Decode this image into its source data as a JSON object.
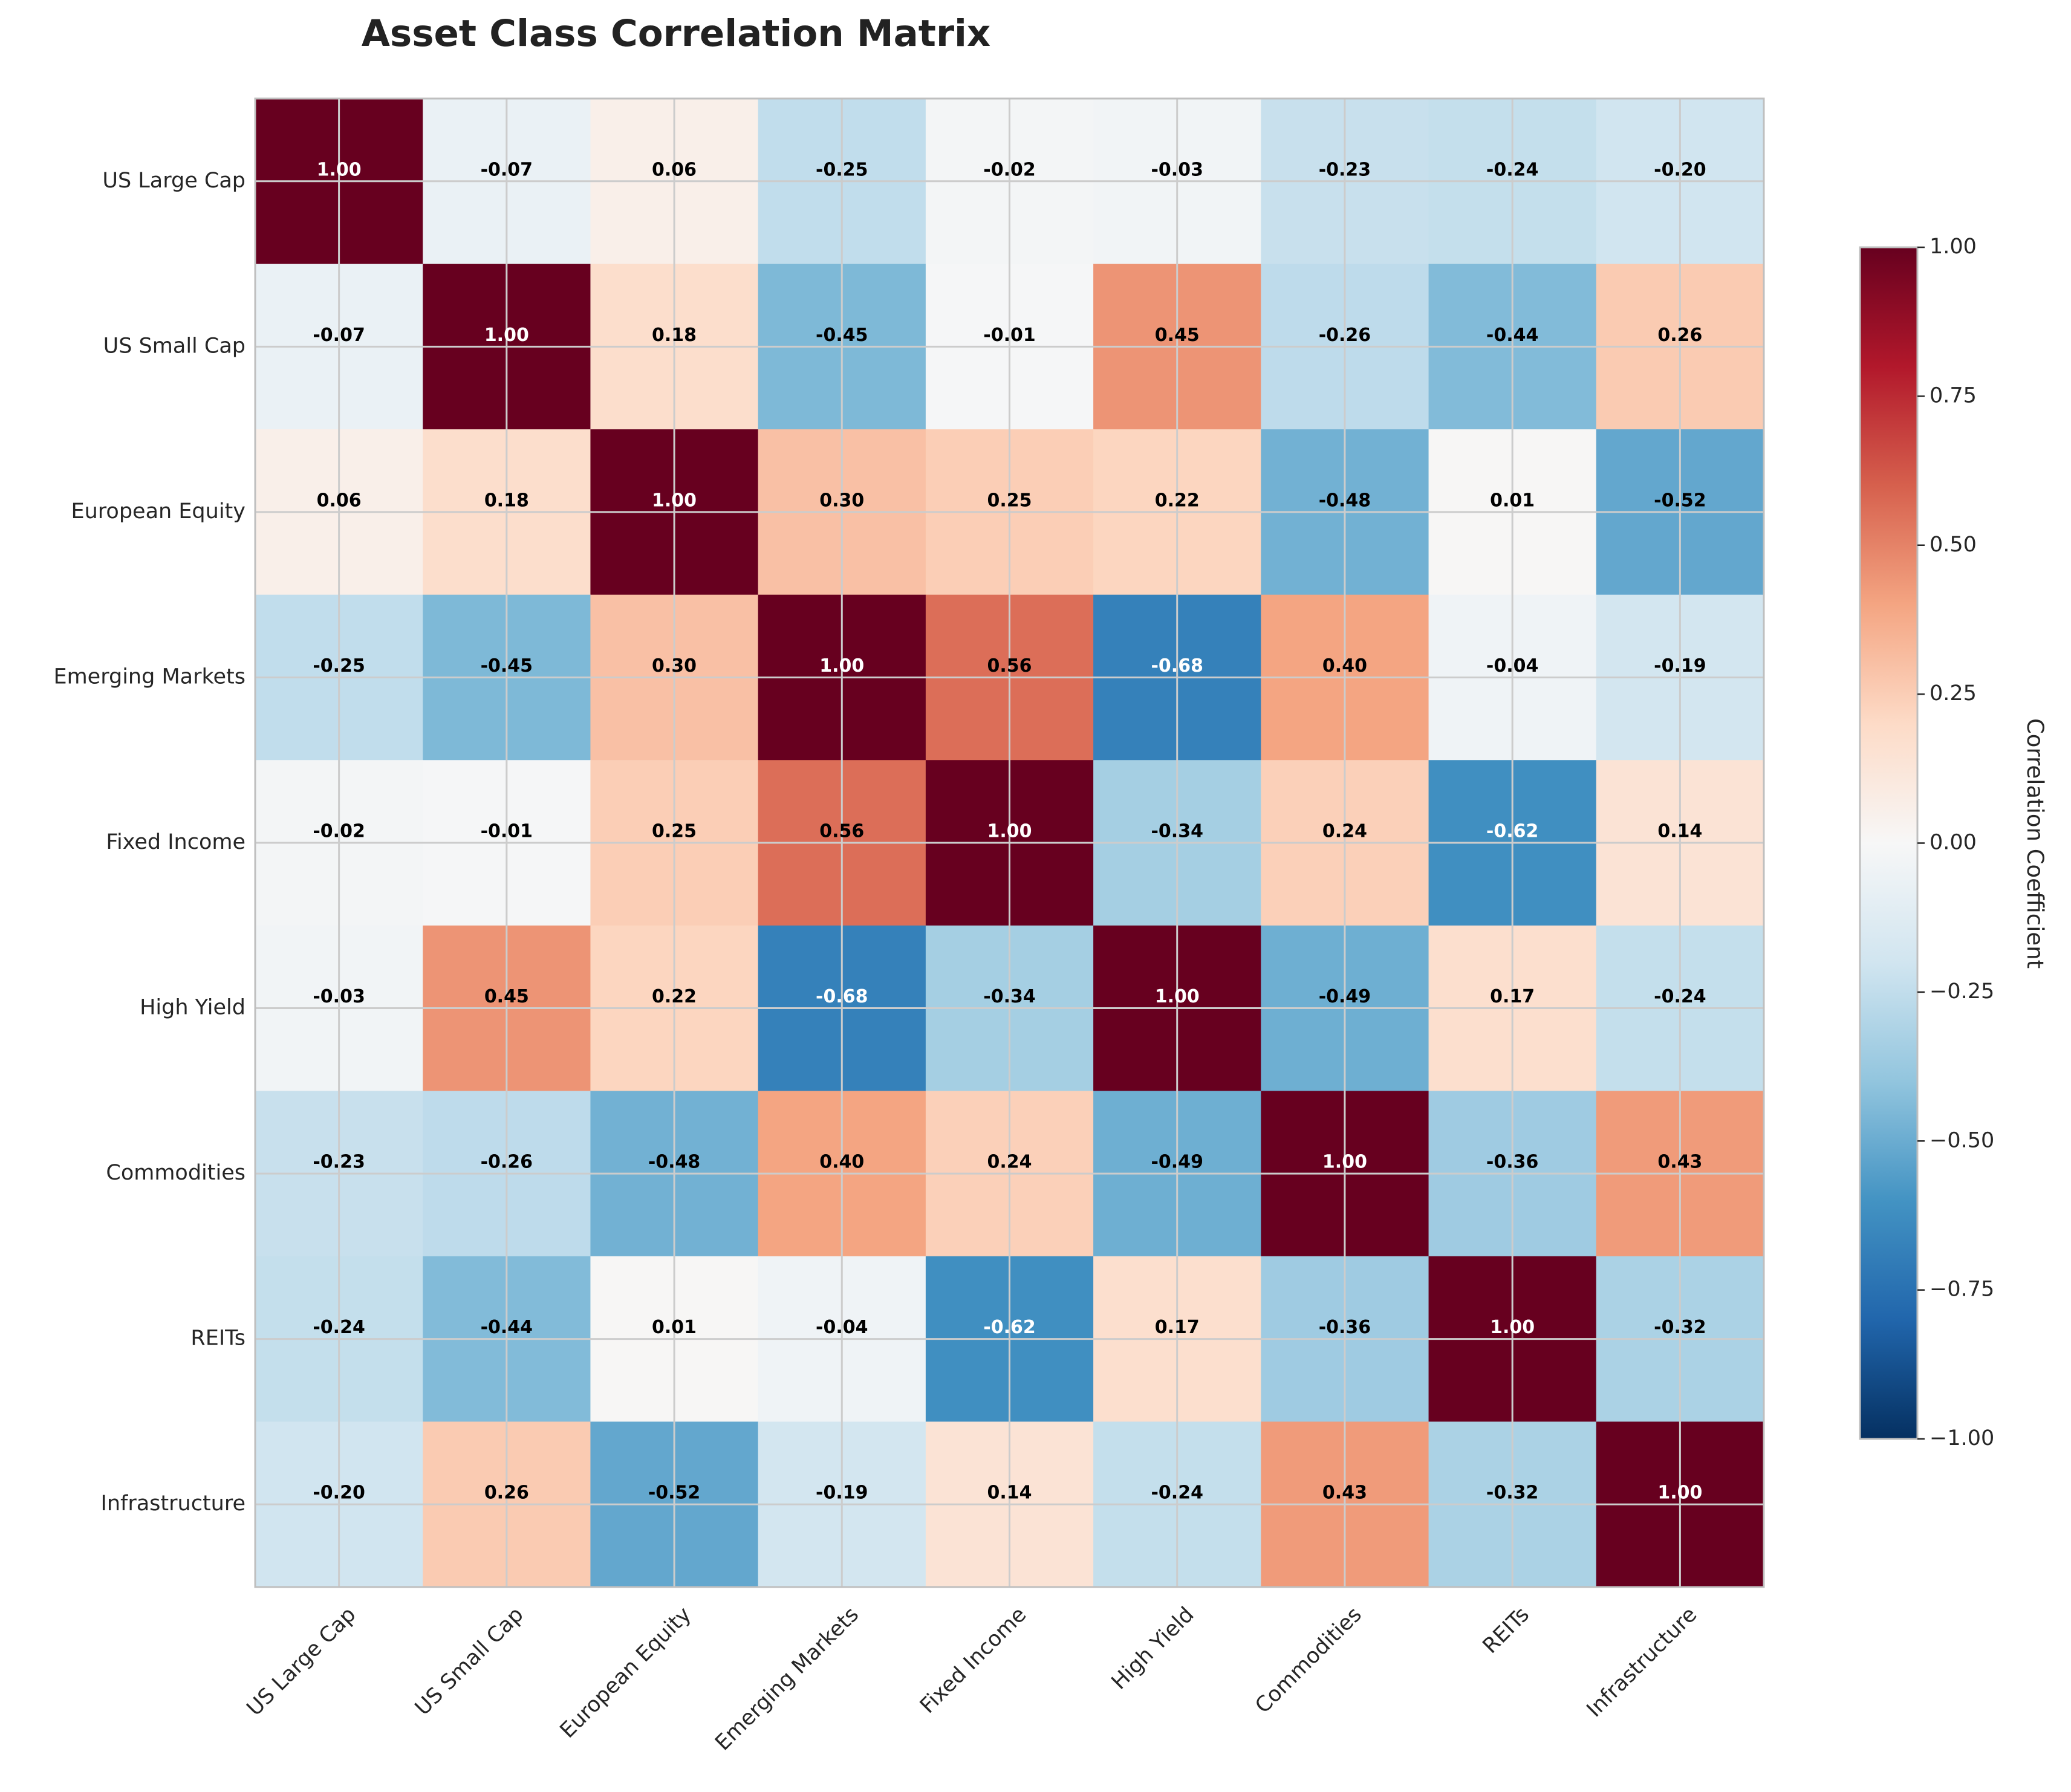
{
  "chart_data": {
    "type": "heatmap",
    "title": "Asset Class Correlation Matrix",
    "categories": [
      "US Large Cap",
      "US Small Cap",
      "European Equity",
      "Emerging Markets",
      "Fixed Income",
      "High Yield",
      "Commodities",
      "REITs",
      "Infrastructure"
    ],
    "matrix": [
      [
        1.0,
        -0.07,
        0.06,
        -0.25,
        -0.02,
        -0.03,
        -0.23,
        -0.24,
        -0.2
      ],
      [
        -0.07,
        1.0,
        0.18,
        -0.45,
        -0.01,
        0.45,
        -0.26,
        -0.44,
        0.26
      ],
      [
        0.06,
        0.18,
        1.0,
        0.3,
        0.25,
        0.22,
        -0.48,
        0.01,
        -0.52
      ],
      [
        -0.25,
        -0.45,
        0.3,
        1.0,
        0.56,
        -0.68,
        0.4,
        -0.04,
        -0.19
      ],
      [
        -0.02,
        -0.01,
        0.25,
        0.56,
        1.0,
        -0.34,
        0.24,
        -0.62,
        0.14
      ],
      [
        -0.03,
        0.45,
        0.22,
        -0.68,
        -0.34,
        1.0,
        -0.49,
        0.17,
        -0.24
      ],
      [
        -0.23,
        -0.26,
        -0.48,
        0.4,
        0.24,
        -0.49,
        1.0,
        -0.36,
        0.43
      ],
      [
        -0.24,
        -0.44,
        0.01,
        -0.04,
        -0.62,
        0.17,
        -0.36,
        1.0,
        -0.32
      ],
      [
        -0.2,
        0.26,
        -0.52,
        -0.19,
        0.14,
        -0.24,
        0.43,
        -0.32,
        1.0
      ]
    ],
    "value_format": "2 decimals",
    "colormap": "RdBu_r",
    "vlim": [
      -1.0,
      1.0
    ],
    "colorbar": {
      "label": "Correlation Coefficient",
      "ticks": [
        1.0,
        0.75,
        0.5,
        0.25,
        0.0,
        -0.25,
        -0.5,
        -0.75,
        -1.0
      ],
      "tick_labels": [
        "1.00",
        "0.75",
        "0.50",
        "0.25",
        "0.00",
        "−0.25",
        "−0.50",
        "−0.75",
        "−1.00"
      ]
    },
    "grid": true,
    "legend_position": "right"
  },
  "colors": {
    "grid": "#cccccc",
    "frame": "#bfbfbf",
    "label_dark": "#000000",
    "label_light": "#ffffff"
  }
}
